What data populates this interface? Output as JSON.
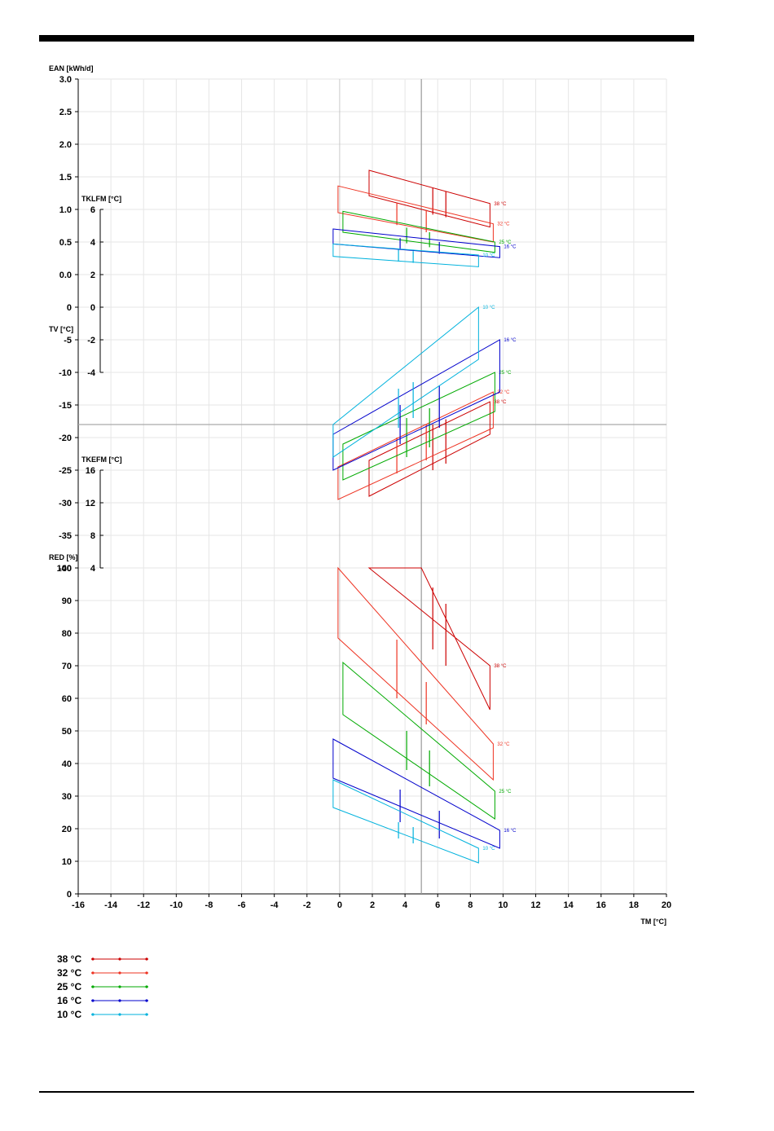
{
  "chart_data": {
    "type": "line",
    "xlabel": "TM [°C]",
    "x_ticks": [
      "-16",
      "-14",
      "-12",
      "-10",
      "-8",
      "-6",
      "-4",
      "-2",
      "0",
      "2",
      "4",
      "6",
      "8",
      "10",
      "12",
      "14",
      "16",
      "18",
      "20"
    ],
    "panels": [
      {
        "id": "ean",
        "label": "EAN [kWh/d]",
        "ylim": [
          0.0,
          3.0
        ],
        "ticks": [
          "3.0",
          "2.5",
          "2.0",
          "1.5",
          "1.0",
          "0.5",
          "0.0"
        ],
        "series": [
          {
            "name": "38 °C",
            "label": "38 °C",
            "corners": [
              [
                1.8,
                1.6
              ],
              [
                9.2,
                1.09
              ],
              [
                9.2,
                0.73
              ],
              [
                1.8,
                1.21
              ]
            ],
            "ribs": [
              [
                5.7,
                1.33,
                0.92
              ],
              [
                6.5,
                1.28,
                0.88
              ]
            ]
          },
          {
            "name": "32 °C",
            "label": "32 °C",
            "corners": [
              [
                -0.1,
                1.36
              ],
              [
                9.4,
                0.78
              ],
              [
                9.4,
                0.5
              ],
              [
                -0.1,
                0.95
              ]
            ],
            "ribs": [
              [
                3.5,
                1.1,
                0.76
              ],
              [
                5.3,
                0.99,
                0.65
              ]
            ]
          },
          {
            "name": "25 °C",
            "label": "25 °C",
            "corners": [
              [
                0.2,
                0.97
              ],
              [
                9.5,
                0.5
              ],
              [
                9.5,
                0.34
              ],
              [
                0.2,
                0.65
              ]
            ],
            "ribs": [
              [
                4.1,
                0.72,
                0.48
              ],
              [
                5.5,
                0.65,
                0.42
              ]
            ]
          },
          {
            "name": "16 °C",
            "label": "16 °C",
            "corners": [
              [
                -0.4,
                0.7
              ],
              [
                9.8,
                0.43
              ],
              [
                9.8,
                0.26
              ],
              [
                -0.4,
                0.47
              ]
            ],
            "ribs": [
              [
                3.7,
                0.56,
                0.38
              ],
              [
                6.1,
                0.5,
                0.32
              ]
            ]
          },
          {
            "name": "10 °C",
            "label": "10 °C",
            "corners": [
              [
                -0.4,
                0.47
              ],
              [
                8.5,
                0.3
              ],
              [
                8.5,
                0.12
              ],
              [
                -0.4,
                0.28
              ]
            ],
            "ribs": [
              [
                3.6,
                0.38,
                0.2
              ],
              [
                4.5,
                0.36,
                0.18
              ]
            ]
          }
        ]
      },
      {
        "id": "tv",
        "label": "TV [°C]",
        "ylim": [
          -40,
          0
        ],
        "ticks": [
          "0",
          "-5",
          "-10",
          "-15",
          "-20",
          "-25",
          "-30",
          "-35",
          "-40"
        ],
        "series": [
          {
            "name": "38 °C",
            "label": "38 °C",
            "corners": [
              [
                1.8,
                -23.5
              ],
              [
                9.2,
                -14.5
              ],
              [
                9.2,
                -19.5
              ],
              [
                1.8,
                -29.0
              ]
            ],
            "ribs": [
              [
                5.7,
                -18.0,
                -25.0
              ],
              [
                6.5,
                -17.2,
                -24.0
              ]
            ]
          },
          {
            "name": "32 °C",
            "label": "32 °C",
            "corners": [
              [
                -0.1,
                -24.5
              ],
              [
                9.4,
                -13.0
              ],
              [
                9.4,
                -18.5
              ],
              [
                -0.1,
                -29.5
              ]
            ],
            "ribs": [
              [
                3.5,
                -20.0,
                -25.5
              ],
              [
                5.3,
                -18.0,
                -23.5
              ]
            ]
          },
          {
            "name": "25 °C",
            "label": "25 °C",
            "corners": [
              [
                0.2,
                -21.0
              ],
              [
                9.5,
                -10.0
              ],
              [
                9.5,
                -16.0
              ],
              [
                0.2,
                -26.5
              ]
            ],
            "ribs": [
              [
                4.1,
                -17.0,
                -23.0
              ],
              [
                5.5,
                -15.5,
                -21.5
              ]
            ]
          },
          {
            "name": "16 °C",
            "label": "16 °C",
            "corners": [
              [
                -0.4,
                -19.5
              ],
              [
                9.8,
                -5.0
              ],
              [
                9.8,
                -13.0
              ],
              [
                -0.4,
                -25.0
              ]
            ],
            "ribs": [
              [
                3.7,
                -15.0,
                -21.0
              ],
              [
                6.1,
                -12.0,
                -18.5
              ]
            ]
          },
          {
            "name": "10 °C",
            "label": "10 °C",
            "corners": [
              [
                -0.4,
                -18.0
              ],
              [
                8.5,
                0.0
              ],
              [
                8.5,
                -8.0
              ],
              [
                -0.4,
                -23.0
              ]
            ],
            "ribs": [
              [
                3.6,
                -12.5,
                -18.5
              ],
              [
                4.5,
                -11.5,
                -17.0
              ]
            ]
          }
        ]
      },
      {
        "id": "red",
        "label": "RED [%]",
        "ylim": [
          0,
          100
        ],
        "ticks": [
          "100",
          "90",
          "80",
          "70",
          "60",
          "50",
          "40",
          "30",
          "20",
          "10",
          "0"
        ],
        "series": [
          {
            "name": "38 °C",
            "label": "38 °C",
            "corners": [
              [
                1.8,
                100.0
              ],
              [
                9.2,
                70.0
              ],
              [
                9.2,
                56.5
              ],
              [
                5.0,
                100.0
              ]
            ],
            "ribs": [
              [
                5.7,
                94.0,
                75.0
              ],
              [
                6.5,
                89.0,
                70.0
              ]
            ]
          },
          {
            "name": "32 °C",
            "label": "32 °C",
            "corners": [
              [
                -0.1,
                100.0
              ],
              [
                9.4,
                46.0
              ],
              [
                9.4,
                35.0
              ],
              [
                -0.1,
                78.5
              ]
            ],
            "ribs": [
              [
                3.5,
                78.0,
                60.0
              ],
              [
                5.3,
                65.0,
                52.0
              ]
            ]
          },
          {
            "name": "25 °C",
            "label": "25 °C",
            "corners": [
              [
                0.2,
                71.0
              ],
              [
                9.5,
                31.5
              ],
              [
                9.5,
                23.0
              ],
              [
                0.2,
                55.0
              ]
            ],
            "ribs": [
              [
                4.1,
                50.0,
                38.0
              ],
              [
                5.5,
                44.0,
                33.0
              ]
            ]
          },
          {
            "name": "16 °C",
            "label": "16 °C",
            "corners": [
              [
                -0.4,
                47.5
              ],
              [
                9.8,
                19.5
              ],
              [
                9.8,
                14.0
              ],
              [
                -0.4,
                35.5
              ]
            ],
            "ribs": [
              [
                3.7,
                32.0,
                22.0
              ],
              [
                6.1,
                25.5,
                17.0
              ]
            ]
          },
          {
            "name": "10 °C",
            "label": "10 °C",
            "corners": [
              [
                -0.4,
                35.0
              ],
              [
                8.5,
                14.0
              ],
              [
                8.5,
                9.5
              ],
              [
                -0.4,
                26.5
              ]
            ],
            "ribs": [
              [
                3.6,
                22.0,
                17.0
              ],
              [
                4.5,
                20.5,
                15.5
              ]
            ]
          }
        ]
      }
    ],
    "inset_axes": [
      {
        "id": "tklfm",
        "label": "TKLFM [°C]",
        "ticks": [
          "6",
          "4",
          "2",
          "0",
          "-2",
          "-4"
        ]
      },
      {
        "id": "tkefm",
        "label": "TKEFM [°C]",
        "ticks": [
          "16",
          "12",
          "8",
          "4"
        ]
      }
    ],
    "legend": {
      "placement": "bottom-left",
      "entries": [
        {
          "label": "38 °C",
          "color": "#cc0000"
        },
        {
          "label": "32 °C",
          "color": "#ee3322"
        },
        {
          "label": "25 °C",
          "color": "#00aa00"
        },
        {
          "label": "16 °C",
          "color": "#0000cc"
        },
        {
          "label": "10 °C",
          "color": "#00b2dd"
        }
      ]
    },
    "reference_lines": {
      "x": 5,
      "tv_y": -18
    },
    "grid": true
  }
}
